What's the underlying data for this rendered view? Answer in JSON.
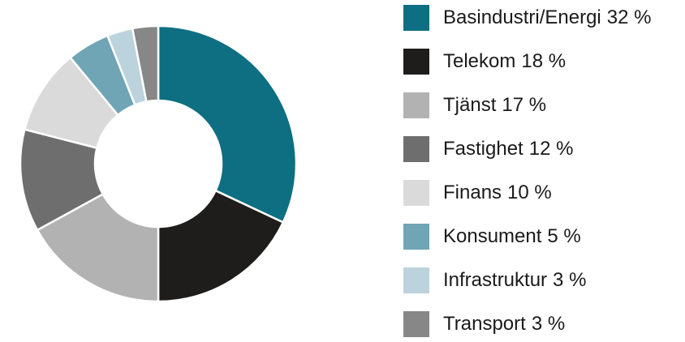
{
  "chart_data": {
    "type": "donut",
    "categories": [
      "Basindustri/Energi",
      "Telekom",
      "Tjänst",
      "Fastighet",
      "Finans",
      "Konsument",
      "Infrastruktur",
      "Transport"
    ],
    "values": [
      32,
      18,
      17,
      12,
      10,
      5,
      3,
      3
    ],
    "value_labels": [
      "32 %",
      "18 %",
      "17 %",
      "12 %",
      "10 %",
      "5 %",
      "3 %",
      "3 %"
    ],
    "colors": [
      "#0e6f82",
      "#1f1d1c",
      "#b2b2b2",
      "#6e6e6e",
      "#dadada",
      "#6fa5b5",
      "#bcd3dd",
      "#878787"
    ],
    "legend": "right"
  }
}
